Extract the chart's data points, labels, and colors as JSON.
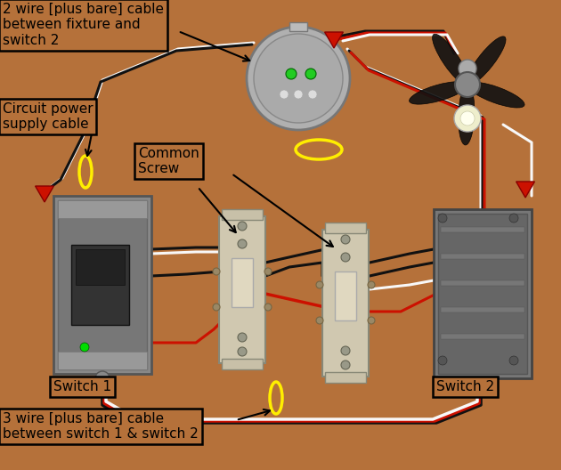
{
  "bg_color": "#b5713a",
  "labels": {
    "top_left_box": "2 wire [plus bare] cable\nbetween fixture and\nswitch 2",
    "circuit_box": "Circuit power\nsupply cable",
    "common_screw": "Common\nScrew",
    "switch1": "Switch 1",
    "switch2": "Switch 2",
    "bottom_box": "3 wire [plus bare] cable\nbetween switch 1 & switch 2"
  },
  "wire_colors": {
    "black": "#111111",
    "white": "#f8f8f8",
    "red": "#cc1100",
    "bare": "#c8a040",
    "yellow": "#ffee00"
  },
  "fig_w": 6.3,
  "fig_h": 5.28,
  "dpi": 100
}
